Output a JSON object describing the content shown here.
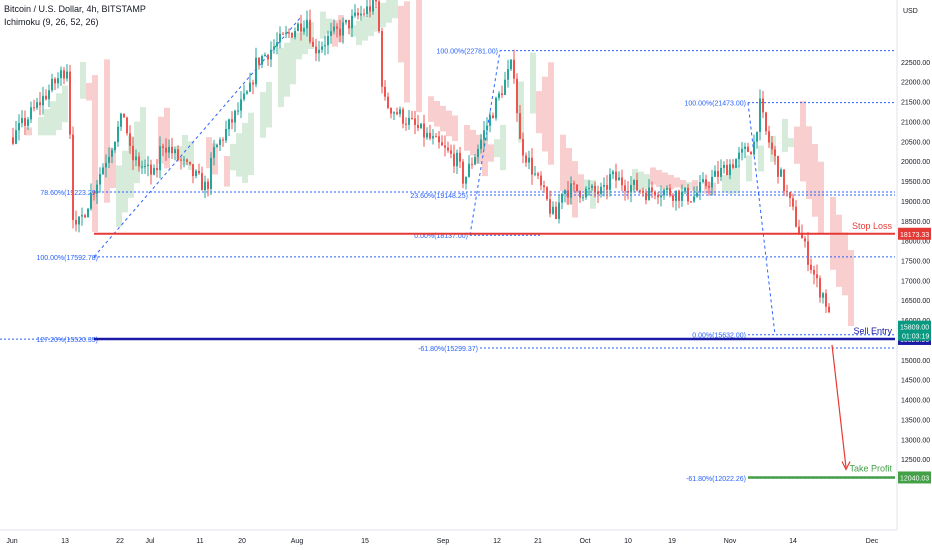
{
  "header": {
    "symbol": "Bitcoin / U.S. Dollar, 4h, BITSTAMP",
    "indicator": "Ichimoku (9, 26, 52, 26)"
  },
  "currency_label": "USD",
  "colors": {
    "up": "#26a69a",
    "down": "#ef5350",
    "cloud_bear": "#f7c6c5",
    "cloud_bull": "#cfe8d2",
    "fib": "#2962ff",
    "stop": "#e53935",
    "entry": "#1a1aa6",
    "profit": "#43a047",
    "axis_text": "#131722"
  },
  "chart_data": {
    "type": "line",
    "title": "",
    "xlabel": "",
    "ylabel": "",
    "x": [
      "Jun",
      "13",
      "22",
      "Jul",
      "11",
      "20",
      "Aug",
      "15",
      "Sep",
      "12",
      "21",
      "Oct",
      "10",
      "19",
      "Nov",
      "14",
      "Dec"
    ],
    "series": [
      {
        "values": [
          [
            "Jun",
            20600
          ],
          [
            "13",
            22400
          ],
          [
            "13",
            18100
          ],
          [
            "22",
            21200
          ],
          [
            "22",
            20100
          ],
          [
            "Jul",
            19600
          ],
          [
            "Jul",
            20500
          ],
          [
            "11",
            19300
          ],
          [
            "11",
            20200
          ],
          [
            "20",
            21800
          ],
          [
            "20",
            22500
          ],
          [
            "Aug",
            23600
          ],
          [
            "Aug",
            22800
          ],
          [
            "15",
            24000
          ],
          [
            "15",
            21500
          ],
          [
            "Sep",
            20000
          ],
          [
            "Sep",
            19500
          ],
          [
            "12",
            22500
          ],
          [
            "12",
            20500
          ],
          [
            "21",
            18500
          ],
          [
            "21",
            19300
          ],
          [
            "Oct",
            19200
          ],
          [
            "Oct",
            19600
          ],
          [
            "10",
            19200
          ],
          [
            "10",
            19300
          ],
          [
            "19",
            19100
          ],
          [
            "19",
            19300
          ],
          [
            "Nov",
            20400
          ],
          [
            "Nov",
            21400
          ],
          [
            "Nov",
            20700
          ],
          [
            "14",
            16800
          ],
          [
            "14",
            16600
          ],
          [
            "14",
            15800
          ]
        ]
      }
    ],
    "ylim": [
      11800,
      23100
    ],
    "y_ticks": [
      "22500.00",
      "22000.00",
      "21500.00",
      "21000.00",
      "20500.00",
      "20000.00",
      "19500.00",
      "19000.00",
      "18500.00",
      "18000.00",
      "17500.00",
      "17000.00",
      "16500.00",
      "16000.00",
      "15000.00",
      "14500.00",
      "14000.00",
      "13500.00",
      "13000.00",
      "12500.00"
    ],
    "fib_levels": [
      {
        "label": "100.00%(22781.00)",
        "value": 22781
      },
      {
        "label": "100.00%(21473.00)",
        "value": 21473
      },
      {
        "label": "78.60%(19223.29)",
        "value": 19223.29
      },
      {
        "label": "23.60%(19148.25)",
        "value": 19148.25
      },
      {
        "label": "0.00%(18137.00)",
        "value": 18137
      },
      {
        "label": "100.00%(17592.78)",
        "value": 17592.78
      },
      {
        "label": "0.00%(15632.00)",
        "value": 15632
      },
      {
        "label": "127.20%(15520.35)",
        "value": 15520.35
      },
      {
        "label": "-61.80%(15299.37)",
        "value": 15299.37
      },
      {
        "label": "-61.80%(12022.26)",
        "value": 12022.26
      }
    ],
    "annotations": {
      "stop_loss": {
        "label": "Stop Loss",
        "value": 18173.33,
        "price_label": "18173.33"
      },
      "sell_entry": {
        "label": "Sell Entry",
        "value": 15525.96,
        "price_label": "15525.96"
      },
      "take_profit": {
        "label": "Take Profit",
        "value": 12040.03,
        "price_label": "12040.03"
      },
      "current_price": {
        "price_label": "15809.00",
        "countdown": "01:03:19"
      }
    },
    "indicator": "Ichimoku (9, 26, 52, 26)",
    "grid": false,
    "legend": "top-left"
  }
}
